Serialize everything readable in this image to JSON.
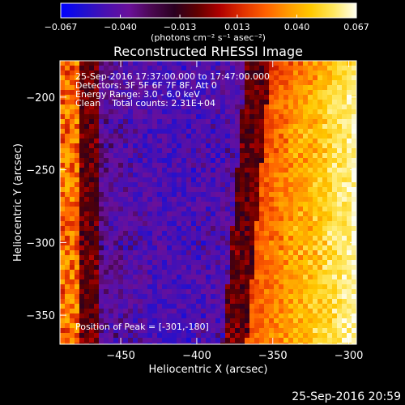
{
  "colorbar": {
    "ticks": [
      "-0.067",
      "-0.040",
      "-0.013",
      "0.013",
      "0.040",
      "0.067"
    ],
    "tick_values": [
      -0.067,
      -0.04,
      -0.013,
      0.013,
      0.04,
      0.067
    ],
    "unit_label": "(photons cm⁻² s⁻¹ asec⁻²)",
    "range": [
      -0.067,
      0.067
    ],
    "colors": [
      "#0000ff",
      "#2010d0",
      "#4a10b0",
      "#6a109a",
      "#4a0850",
      "#2a0020",
      "#600000",
      "#b00000",
      "#e03000",
      "#ff6000",
      "#ff9a00",
      "#ffc800",
      "#ffe860",
      "#fffff0"
    ]
  },
  "chart_data": {
    "type": "heatmap",
    "title": "Reconstructed RHESSI Image",
    "xlabel": "Heliocentric X (arcsec)",
    "ylabel": "Heliocentric Y (arcsec)",
    "xlim": [
      -490,
      -295
    ],
    "ylim": [
      -370,
      -175
    ],
    "x_ticks": [
      -450,
      -400,
      -350,
      -300
    ],
    "x_tick_labels": [
      "−450",
      "−400",
      "−350",
      "−300"
    ],
    "y_ticks": [
      -350,
      -300,
      -250,
      -200
    ],
    "y_tick_labels": [
      "−350",
      "−300",
      "−250",
      "−200"
    ],
    "grid": false,
    "annotations": [
      "25-Sep-2016 17:37:00.000 to 17:47:00.000",
      "Detectors: 3F 5F 6F 7F 8F, Att 0",
      "Energy Range: 3.0 - 6.0 keV",
      "Clean    Total counts: 2.31E+04"
    ],
    "peak_label": "Position of Peak = [-301,-180]",
    "peak_position": [
      -301,
      -180
    ],
    "value_range": [
      -0.067,
      0.067
    ]
  },
  "footer": {
    "timestamp": "25-Sep-2016 20:59"
  }
}
